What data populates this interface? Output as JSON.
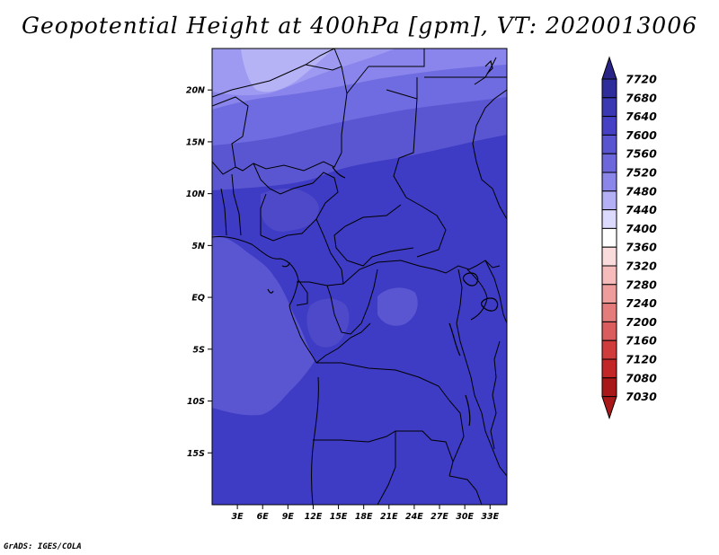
{
  "title": "Geopotential Height at 400hPa [gpm], VT: 2020013006",
  "credit": "GrADS: IGES/COLA",
  "map": {
    "variable": "Geopotential Height",
    "level": "400hPa",
    "units": "gpm",
    "valid_time": "2020013006",
    "projection": "latlon",
    "lon_range": [
      0,
      35
    ],
    "lat_range": [
      -20,
      24
    ],
    "lon_ticks": [
      "3E",
      "6E",
      "9E",
      "12E",
      "15E",
      "18E",
      "21E",
      "24E",
      "27E",
      "30E",
      "33E"
    ],
    "lat_ticks": [
      "20N",
      "15N",
      "10N",
      "5N",
      "EQ",
      "5S",
      "10S",
      "15S"
    ],
    "overlay": "country boundaries and coastlines (black)"
  },
  "colorbar": {
    "labels": [
      "7720",
      "7680",
      "7640",
      "7600",
      "7560",
      "7520",
      "7480",
      "7440",
      "7400",
      "7360",
      "7320",
      "7280",
      "7240",
      "7200",
      "7160",
      "7120",
      "7080",
      "7030"
    ],
    "colors": [
      "#2a2487",
      "#2f2c9c",
      "#3a38b2",
      "#4540c4",
      "#5955d0",
      "#6c68dc",
      "#8a86ea",
      "#b4b0f6",
      "#dcdafc",
      "#fefefe",
      "#fbdcdc",
      "#f6bcbc",
      "#ee9c9c",
      "#e47c7c",
      "#da5c5c",
      "#d03c3c",
      "#c22626",
      "#a81818"
    ]
  }
}
